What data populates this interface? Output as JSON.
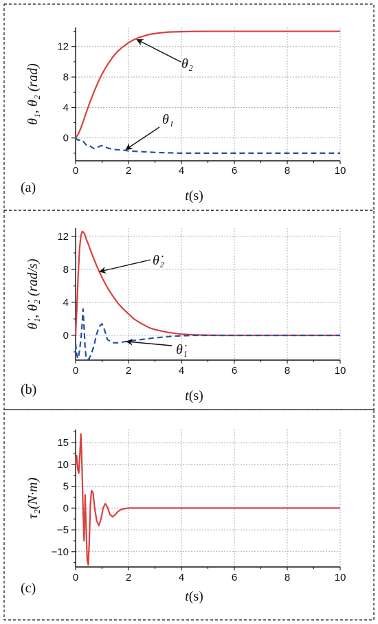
{
  "chart_data": [
    {
      "panel": "(a)",
      "type": "line",
      "ylabel": "θ₁, θ₂ (rad)",
      "xlabel": "t(s)",
      "xlim": [
        0,
        10
      ],
      "ylim": [
        -3,
        14.5
      ],
      "xticks": [
        0,
        2,
        4,
        6,
        8,
        10
      ],
      "yticks": [
        0,
        4,
        8,
        12
      ],
      "grid": true,
      "series": [
        {
          "name": "θ₂",
          "color": "#d94040",
          "style": "solid",
          "x": [
            0,
            0.1,
            0.2,
            0.3,
            0.4,
            0.5,
            0.6,
            0.7,
            0.8,
            0.9,
            1.0,
            1.2,
            1.4,
            1.6,
            1.8,
            2.0,
            2.2,
            2.4,
            2.6,
            2.8,
            3.0,
            3.2,
            3.5,
            4.0,
            4.5,
            5.0,
            6.0,
            7.0,
            8.0,
            9.0,
            10.0
          ],
          "y": [
            0,
            0.5,
            1.3,
            2.3,
            3.3,
            4.3,
            5.2,
            6.1,
            6.9,
            7.7,
            8.4,
            9.6,
            10.6,
            11.4,
            12.0,
            12.5,
            12.9,
            13.2,
            13.4,
            13.6,
            13.7,
            13.8,
            13.9,
            13.95,
            13.98,
            14.0,
            14.0,
            14.0,
            14.0,
            14.0,
            14.0
          ]
        },
        {
          "name": "θ₁",
          "color": "#2451a6",
          "style": "dashed",
          "x": [
            0,
            0.1,
            0.2,
            0.3,
            0.4,
            0.5,
            0.6,
            0.7,
            0.8,
            0.9,
            1.0,
            1.1,
            1.2,
            1.4,
            1.6,
            1.8,
            2.0,
            2.5,
            3.0,
            3.5,
            4.0,
            5.0,
            6.0,
            7.0,
            8.0,
            9.0,
            10.0
          ],
          "y": [
            0,
            -0.3,
            -0.2,
            -0.5,
            -0.9,
            -0.9,
            -1.2,
            -1.4,
            -1.3,
            -1.1,
            -1.0,
            -1.1,
            -1.3,
            -1.5,
            -1.55,
            -1.6,
            -1.7,
            -1.8,
            -1.9,
            -1.95,
            -2.0,
            -2.0,
            -2.0,
            -2.0,
            -2.0,
            -2.0,
            -2.0
          ]
        }
      ]
    },
    {
      "panel": "(b)",
      "type": "line",
      "ylabel": "θ̇₁, θ̇₂ (rad/s)",
      "xlabel": "t(s)",
      "xlim": [
        0,
        10
      ],
      "ylim": [
        -3,
        13
      ],
      "xticks": [
        0,
        2,
        4,
        6,
        8,
        10
      ],
      "yticks": [
        0,
        4,
        8,
        12
      ],
      "grid": true,
      "series": [
        {
          "name": "θ̇₂",
          "color": "#d94040",
          "style": "solid",
          "x": [
            0,
            0.05,
            0.1,
            0.15,
            0.2,
            0.25,
            0.3,
            0.35,
            0.4,
            0.5,
            0.6,
            0.8,
            1.0,
            1.2,
            1.4,
            1.6,
            1.8,
            2.0,
            2.2,
            2.5,
            2.8,
            3.0,
            3.5,
            4.0,
            4.5,
            5.0,
            5.5,
            6.0,
            7.0,
            8.0,
            9.0,
            10.0
          ],
          "y": [
            0,
            3.5,
            7.5,
            10.5,
            12.1,
            12.6,
            12.5,
            12.2,
            11.7,
            10.9,
            10.0,
            8.4,
            7.0,
            5.8,
            4.8,
            3.9,
            3.2,
            2.6,
            2.0,
            1.4,
            0.9,
            0.7,
            0.35,
            0.15,
            0.06,
            0.02,
            0.0,
            0.0,
            0.0,
            0.0,
            0.0,
            0.0
          ]
        },
        {
          "name": "θ̇₁",
          "color": "#2451a6",
          "style": "dashed",
          "x": [
            0,
            0.05,
            0.1,
            0.15,
            0.2,
            0.25,
            0.28,
            0.32,
            0.36,
            0.4,
            0.5,
            0.6,
            0.7,
            0.8,
            0.9,
            1.0,
            1.1,
            1.2,
            1.4,
            1.6,
            1.8,
            2.0,
            2.5,
            3.0,
            3.5,
            4.0,
            4.5,
            5.0,
            6.0,
            7.0,
            8.0,
            9.0,
            10.0
          ],
          "y": [
            -1.0,
            -2.5,
            -2.8,
            -1.8,
            -0.5,
            1.5,
            3.2,
            1.0,
            -1.5,
            -2.8,
            -2.9,
            -2.2,
            -1.2,
            0.2,
            1.1,
            1.4,
            0.6,
            -0.5,
            -0.9,
            -0.9,
            -0.8,
            -0.7,
            -0.5,
            -0.3,
            -0.15,
            -0.05,
            0.0,
            0.0,
            0.0,
            0.0,
            0.0,
            0.0,
            0.0
          ]
        }
      ]
    },
    {
      "panel": "(c)",
      "type": "line",
      "ylabel": "τ₂(N·m)",
      "xlabel": "t(s)",
      "xlim": [
        0,
        10
      ],
      "ylim": [
        -13.5,
        18
      ],
      "xticks": [
        0,
        2,
        4,
        6,
        8,
        10
      ],
      "yticks": [
        -10,
        -5,
        0,
        5,
        10,
        15
      ],
      "ytick_labels": [
        "−10",
        "−5",
        "0",
        "5",
        "10",
        "15"
      ],
      "grid": true,
      "series": [
        {
          "name": "τ₂",
          "color": "#d94040",
          "style": "solid",
          "x": [
            0,
            0.04,
            0.08,
            0.12,
            0.16,
            0.2,
            0.24,
            0.28,
            0.32,
            0.36,
            0.4,
            0.44,
            0.48,
            0.52,
            0.56,
            0.6,
            0.66,
            0.72,
            0.8,
            0.88,
            0.96,
            1.04,
            1.12,
            1.2,
            1.3,
            1.4,
            1.5,
            1.6,
            1.7,
            1.8,
            2.0,
            2.5,
            3.0,
            4.0,
            5.0,
            6.0,
            7.0,
            8.0,
            9.0,
            10.0
          ],
          "y": [
            10,
            12,
            9,
            8,
            12,
            17,
            10,
            0,
            -7.5,
            3,
            -5,
            -12,
            -13,
            -7,
            1,
            4,
            3.5,
            0,
            -3,
            -4,
            -2.5,
            0,
            1,
            0.3,
            -1.5,
            -2,
            -1.5,
            -0.8,
            -0.4,
            -0.2,
            0,
            0,
            0,
            0,
            0,
            0,
            0,
            0,
            0,
            0
          ]
        }
      ]
    }
  ],
  "labels": {
    "panel_a": "(a)",
    "panel_b": "(b)",
    "panel_c": "(c)",
    "annot_theta2": "θ₂",
    "annot_theta1": "θ₁",
    "annot_dtheta2": "θ̇₂",
    "annot_dtheta1": "θ̇₁"
  }
}
